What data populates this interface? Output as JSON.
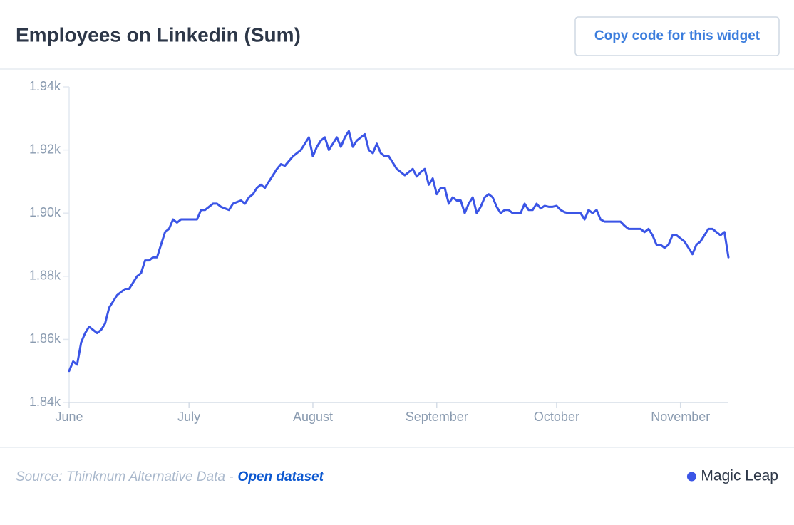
{
  "header": {
    "title": "Employees on Linkedin (Sum)",
    "button": "Copy code for this widget"
  },
  "footer": {
    "source": "Source: Thinknum Alternative Data -",
    "link": "Open dataset"
  },
  "chart_data": {
    "type": "line",
    "legend": "bottom-right",
    "grid": false,
    "ylim": [
      1840,
      1940
    ],
    "yticks": [
      {
        "value": 1840,
        "label": "1.84k"
      },
      {
        "value": 1860,
        "label": "1.86k"
      },
      {
        "value": 1880,
        "label": "1.88k"
      },
      {
        "value": 1900,
        "label": "1.90k"
      },
      {
        "value": 1920,
        "label": "1.92k"
      },
      {
        "value": 1940,
        "label": "1.94k"
      }
    ],
    "categories": [
      "June",
      null,
      null,
      null,
      null,
      null,
      null,
      null,
      null,
      null,
      null,
      null,
      null,
      null,
      null,
      null,
      null,
      null,
      null,
      null,
      null,
      null,
      null,
      null,
      null,
      null,
      null,
      null,
      null,
      null,
      "July",
      null,
      null,
      null,
      null,
      null,
      null,
      null,
      null,
      null,
      null,
      null,
      null,
      null,
      null,
      null,
      null,
      null,
      null,
      null,
      null,
      null,
      null,
      null,
      null,
      null,
      null,
      null,
      null,
      null,
      null,
      "August",
      null,
      null,
      null,
      null,
      null,
      null,
      null,
      null,
      null,
      null,
      null,
      null,
      null,
      null,
      null,
      null,
      null,
      null,
      null,
      null,
      null,
      null,
      null,
      null,
      null,
      null,
      null,
      null,
      null,
      null,
      "September",
      null,
      null,
      null,
      null,
      null,
      null,
      null,
      null,
      null,
      null,
      null,
      null,
      null,
      null,
      null,
      null,
      null,
      null,
      null,
      null,
      null,
      null,
      null,
      null,
      null,
      null,
      null,
      null,
      null,
      "October",
      null,
      null,
      null,
      null,
      null,
      null,
      null,
      null,
      null,
      null,
      null,
      null,
      null,
      null,
      null,
      null,
      null,
      null,
      null,
      null,
      null,
      null,
      null,
      null,
      null,
      null,
      null,
      null,
      null,
      null,
      "November",
      null,
      null,
      null,
      null,
      null,
      null,
      null,
      null,
      null,
      null,
      null,
      null
    ],
    "series": [
      {
        "name": "Magic Leap",
        "color": "#3b55e6",
        "values": [
          1850,
          1853,
          1852,
          1859,
          1862,
          1864,
          1863,
          1862,
          1863,
          1865,
          1870,
          1872,
          1874,
          1875,
          1876,
          1876,
          1878,
          1880,
          1881,
          1885,
          1885,
          1886,
          1886,
          1890,
          1894,
          1895,
          1898,
          1897,
          1898,
          1898,
          1898,
          1898,
          1898,
          1901,
          1901,
          1902,
          1903,
          1903,
          1902,
          1901.5,
          1901,
          1903,
          1903.5,
          1904,
          1903,
          1905,
          1906,
          1908,
          1909,
          1908,
          1910,
          1912,
          1914,
          1915.5,
          1915,
          1916.5,
          1918,
          1919,
          1920,
          1922,
          1924,
          1918,
          1921,
          1923,
          1924,
          1920,
          1922,
          1924,
          1921,
          1924,
          1926,
          1921,
          1923,
          1924,
          1925,
          1920,
          1919,
          1922,
          1919,
          1918,
          1918,
          1916,
          1914,
          1913,
          1912,
          1913,
          1914,
          1911.6,
          1913,
          1914,
          1909,
          1911,
          1906,
          1908,
          1908,
          1903,
          1905,
          1904,
          1904,
          1900,
          1903,
          1905,
          1900,
          1902,
          1905,
          1906,
          1905,
          1902,
          1900,
          1901,
          1901,
          1900,
          1900,
          1900,
          1903,
          1901,
          1901,
          1903,
          1901.5,
          1902.3,
          1902,
          1902,
          1902.3,
          1901,
          1900.3,
          1900,
          1900,
          1900,
          1900,
          1898,
          1901,
          1900,
          1901,
          1898,
          1897.3,
          1897.3,
          1897.3,
          1897.3,
          1897.3,
          1896,
          1895,
          1895,
          1895,
          1895,
          1894,
          1895,
          1893,
          1890,
          1890,
          1889,
          1890,
          1893,
          1893,
          1892,
          1891,
          1889,
          1887,
          1890,
          1891,
          1893,
          1895,
          1895,
          1894,
          1893,
          1894,
          1886
        ]
      }
    ]
  }
}
